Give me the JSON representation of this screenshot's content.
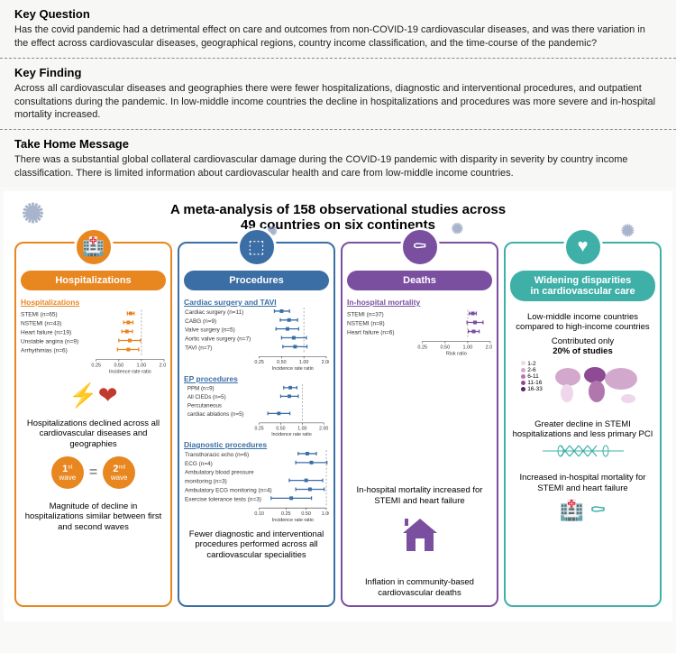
{
  "key_question": {
    "heading": "Key Question",
    "body": "Has the covid pandemic had a detrimental effect on care and outcomes from non-COVID-19 cardiovascular diseases, and was there variation in the effect across cardiovascular diseases, geographical regions, country income classification, and the time-course of the pandemic?"
  },
  "key_finding": {
    "heading": "Key Finding",
    "body": "Across all cardiovascular diseases and geographies there were fewer hospitalizations, diagnostic and interventional procedures, and outpatient consultations during the pandemic. In low-middle income countries the decline in hospitalizations and procedures was more severe and in-hospital mortality increased."
  },
  "take_home": {
    "heading": "Take Home Message",
    "body": "There was a substantial global collateral cardiovascular damage during the COVID-19 pandemic with disparity in severity by country income classification. There is limited information about cardiovascular health and care from low-middle income countries."
  },
  "title_line1": "A meta-analysis of 158 observational studies across",
  "title_line2": "49 countries on six continents",
  "col1": {
    "label": "Hospitalizations",
    "section": "Hospitalizations",
    "forest": {
      "xmin": 0.25,
      "xmax": 2.0,
      "ticks": [
        0.25,
        0.5,
        1.0,
        2.0
      ],
      "xlabel": "Incidence rate ratio",
      "color": "#e8861f",
      "rows": [
        {
          "label": "STEMI (n=65)",
          "est": 0.72,
          "lo": 0.65,
          "hi": 0.8
        },
        {
          "label": "NSTEMI (n=43)",
          "est": 0.67,
          "lo": 0.58,
          "hi": 0.77
        },
        {
          "label": "Heart failure (n=19)",
          "est": 0.64,
          "lo": 0.55,
          "hi": 0.76
        },
        {
          "label": "Unstable angina (n=9)",
          "est": 0.7,
          "lo": 0.5,
          "hi": 0.97
        },
        {
          "label": "Arrhythmias (n=6)",
          "est": 0.67,
          "lo": 0.48,
          "hi": 0.92
        }
      ]
    },
    "blurb1": "Hospitalizations declined across all cardiovascular diseases and geographies",
    "wave1": "1",
    "wave1_suf": "st",
    "wave_word": "wave",
    "wave2": "2",
    "wave2_suf": "nd",
    "blurb2": "Magnitude of decline in hospitalizations similar between first and second waves"
  },
  "col2": {
    "label": "Procedures",
    "sections": [
      {
        "title": "Cardiac surgery and TAVI",
        "forest": {
          "xmin": 0.25,
          "xmax": 2.0,
          "ticks": [
            0.25,
            0.5,
            1.0,
            2.0
          ],
          "xlabel": "Incidence rate ratio",
          "color": "#3b6ea5",
          "rows": [
            {
              "label": "Cardiac surgery (n=11)",
              "est": 0.5,
              "lo": 0.4,
              "hi": 0.64
            },
            {
              "label": "CABG (n=9)",
              "est": 0.63,
              "lo": 0.48,
              "hi": 0.82
            },
            {
              "label": "Valve surgery (n=5)",
              "est": 0.6,
              "lo": 0.42,
              "hi": 0.85
            },
            {
              "label": "Aortic valve surgery (n=7)",
              "est": 0.73,
              "lo": 0.5,
              "hi": 1.08
            },
            {
              "label": "TAVI (n=7)",
              "est": 0.76,
              "lo": 0.52,
              "hi": 1.1
            }
          ]
        }
      },
      {
        "title": "EP procedures",
        "forest": {
          "xmin": 0.25,
          "xmax": 2.0,
          "ticks": [
            0.25,
            0.5,
            1.0,
            2.0
          ],
          "xlabel": "Incidence rate ratio",
          "color": "#3b6ea5",
          "rows": [
            {
              "label": "PPM (n=9)",
              "est": 0.68,
              "lo": 0.55,
              "hi": 0.84
            },
            {
              "label": "All CIEDs (n=5)",
              "est": 0.66,
              "lo": 0.5,
              "hi": 0.88
            },
            {
              "label": "Percutaneous",
              "est": null,
              "lo": null,
              "hi": null
            },
            {
              "label": "cardiac ablations (n=5)",
              "est": 0.47,
              "lo": 0.33,
              "hi": 0.67
            }
          ]
        }
      },
      {
        "title": "Diagnostic procedures",
        "forest": {
          "xmin": 0.1,
          "xmax": 1.0,
          "ticks": [
            0.1,
            0.25,
            0.5,
            1.0
          ],
          "xlabel": "Incidence rate ratio",
          "color": "#3b6ea5",
          "rows": [
            {
              "label": "Transthoracic echo (n=6)",
              "est": 0.52,
              "lo": 0.38,
              "hi": 0.71
            },
            {
              "label": "ECG (n=4)",
              "est": 0.6,
              "lo": 0.35,
              "hi": 1.02
            },
            {
              "label": "Ambulatory blood pressure",
              "est": null,
              "lo": null,
              "hi": null
            },
            {
              "label": "monitoring (n=3)",
              "est": 0.5,
              "lo": 0.28,
              "hi": 0.88
            },
            {
              "label": "Ambulatory ECG monitoring (n=4)",
              "est": 0.57,
              "lo": 0.35,
              "hi": 0.93
            },
            {
              "label": "Exercise tolerance tests (n=3)",
              "est": 0.3,
              "lo": 0.15,
              "hi": 0.6
            }
          ]
        }
      }
    ],
    "blurb": "Fewer diagnostic and interventional procedures performed across all cardiovascular specialities"
  },
  "col3": {
    "label": "Deaths",
    "section": "In-hospital mortality",
    "forest": {
      "xmin": 0.25,
      "xmax": 2.0,
      "ticks": [
        0.25,
        0.5,
        1.0,
        2.0
      ],
      "xlabel": "Risk ratio",
      "color": "#7b4fa0",
      "rows": [
        {
          "label": "STEMI (n=37)",
          "est": 1.17,
          "lo": 1.05,
          "hi": 1.3
        },
        {
          "label": "NSTEMI (n=8)",
          "est": 1.25,
          "lo": 0.98,
          "hi": 1.6
        },
        {
          "label": "Heart failure (n=6)",
          "est": 1.2,
          "lo": 1.02,
          "hi": 1.42
        }
      ]
    },
    "blurb1": "In-hospital mortality increased for STEMI and heart failure",
    "blurb2": "Inflation in community-based cardiovascular deaths"
  },
  "col4": {
    "label_l1": "Widening disparities",
    "label_l2": "in cardiovascular care",
    "blurb1": "Low-middle income countries compared to high-income countries",
    "blurb2_l1": "Contributed only",
    "blurb2_l2": "20% of studies",
    "legend": [
      {
        "range": "1-2",
        "color": "#f0d6ea"
      },
      {
        "range": "2-6",
        "color": "#d3a8cd"
      },
      {
        "range": "6-11",
        "color": "#b276af"
      },
      {
        "range": "11-16",
        "color": "#8e4a92"
      },
      {
        "range": "16-33",
        "color": "#5d2267"
      }
    ],
    "blurb3": "Greater decline in STEMI hospitalizations and less primary PCI",
    "blurb4": "Increased in-hospital mortality for STEMI and heart failure"
  }
}
